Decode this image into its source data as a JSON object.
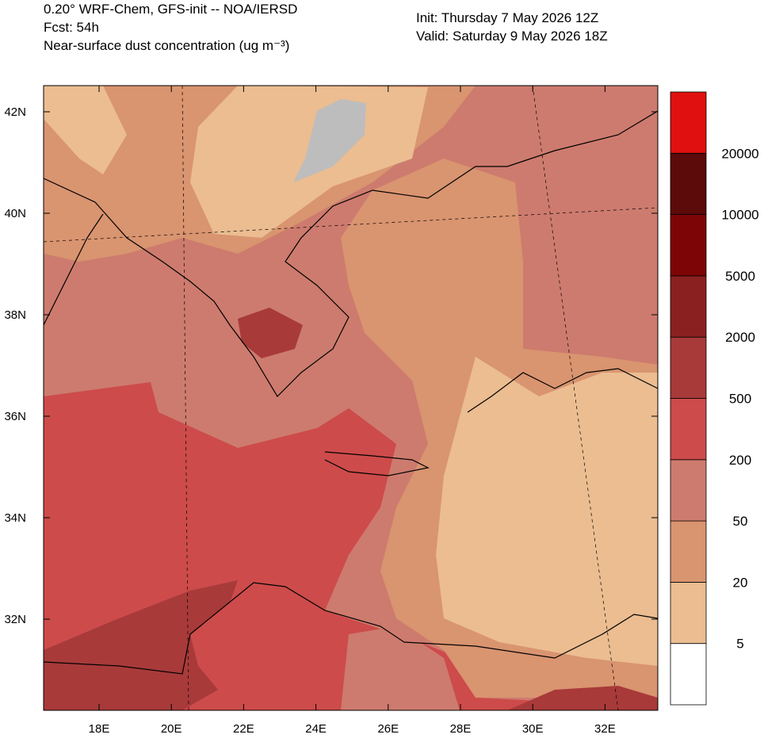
{
  "header": {
    "left": [
      "0.20° WRF-Chem, GFS-init -- NOA/IERSD",
      "Fcst: 54h",
      "Near-surface dust concentration (ug m⁻³)"
    ],
    "right": [
      "Init: Thursday 7 May 2026  12Z",
      "Valid: Saturday 9 May 2026  18Z"
    ]
  },
  "map": {
    "lat_labels": [
      "42N",
      "40N",
      "38N",
      "36N",
      "34N",
      "32N"
    ],
    "lon_labels": [
      "18E",
      "20E",
      "22E",
      "24E",
      "26E",
      "28E",
      "30E",
      "32E"
    ]
  },
  "colorbar": {
    "levels": [
      5,
      20,
      50,
      200,
      500,
      2000,
      5000,
      10000,
      20000
    ],
    "colors": [
      "#ffffff",
      "#ebbd91",
      "#d99470",
      "#cd7b6e",
      "#cd4b4b",
      "#a83a3a",
      "#8b2020",
      "#7d0505",
      "#5c0a0a",
      "#e01010"
    ]
  }
}
